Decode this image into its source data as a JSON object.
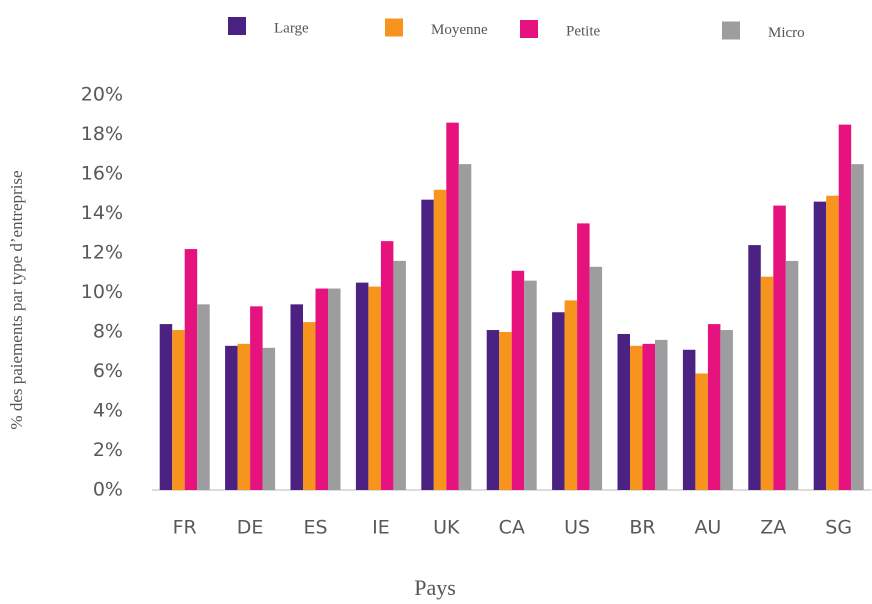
{
  "chart_data": {
    "type": "bar",
    "x_label": "Pays",
    "y_label": "% des paiements par type d’entreprise",
    "categories": [
      "FR",
      "DE",
      "ES",
      "IE",
      "UK",
      "CA",
      "US",
      "BR",
      "AU",
      "ZA",
      "SG"
    ],
    "series": [
      {
        "name": "Large",
        "color": "#4b2182",
        "values": [
          8.4,
          7.3,
          9.4,
          10.5,
          14.7,
          8.1,
          9.0,
          7.9,
          7.1,
          12.4,
          14.6
        ]
      },
      {
        "name": "Moyenne",
        "color": "#f7941d",
        "values": [
          8.1,
          7.4,
          8.5,
          10.3,
          15.2,
          8.0,
          9.6,
          7.3,
          5.9,
          10.8,
          14.9
        ]
      },
      {
        "name": "Petite",
        "color": "#e6127d",
        "values": [
          12.2,
          9.3,
          10.2,
          12.6,
          18.6,
          11.1,
          13.5,
          7.4,
          8.4,
          14.4,
          18.5
        ]
      },
      {
        "name": "Micro",
        "color": "#9d9d9f",
        "values": [
          9.4,
          7.2,
          10.2,
          11.6,
          16.5,
          10.6,
          11.3,
          7.6,
          8.1,
          11.6,
          16.5
        ]
      }
    ],
    "ylim": [
      0,
      20
    ],
    "yticks": [
      {
        "value": 0,
        "label": "0%"
      },
      {
        "value": 2,
        "label": "2%"
      },
      {
        "value": 4,
        "label": "4%"
      },
      {
        "value": 6,
        "label": "6%"
      },
      {
        "value": 8,
        "label": "8%"
      },
      {
        "value": 10,
        "label": "10%"
      },
      {
        "value": 12,
        "label": "12%"
      },
      {
        "value": 14,
        "label": "14%"
      },
      {
        "value": 16,
        "label": "16%"
      },
      {
        "value": 18,
        "label": "18%"
      },
      {
        "value": 20,
        "label": "20%"
      }
    ],
    "grid": false,
    "legend": "top"
  }
}
